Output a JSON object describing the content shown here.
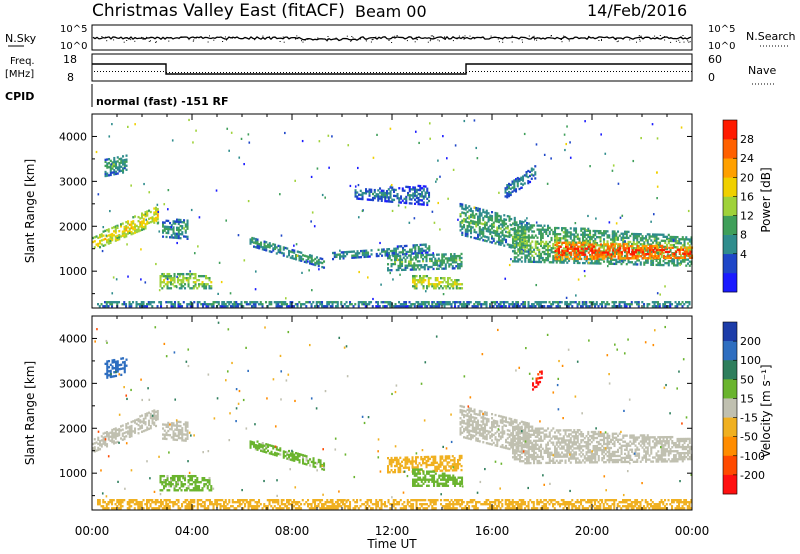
{
  "header": {
    "title": "Christmas Valley East (fitACF)",
    "beam": "Beam 00",
    "date": "14/Feb/2016"
  },
  "status_panel": {
    "nsky_label": "N.Sky",
    "nsky_ticks": [
      "10^5",
      "10^0"
    ],
    "nsearch_label": "N.Search",
    "nsearch_ticks": [
      "10^5",
      "10^0"
    ],
    "freq_label_1": "Freq.",
    "freq_label_2": "[MHz]",
    "freq_ticks": [
      "18",
      "8"
    ],
    "nave_label": "Nave",
    "nave_ticks": [
      "60",
      "0"
    ],
    "cpid_label": "CPID",
    "cpid_text": "normal (fast) -151 RF"
  },
  "colors": {
    "power_scale": [
      "#1a1aff",
      "#1e46c8",
      "#2f8c8c",
      "#3f9f5a",
      "#9fd23a",
      "#f0d000",
      "#ffa000",
      "#ff6000",
      "#ff1a00"
    ],
    "velocity_scale": [
      "#1c3ca8",
      "#2e6ec0",
      "#2e7e5c",
      "#6ab42e",
      "#c0c0b0",
      "#f0b020",
      "#ff8c00",
      "#ff4a00",
      "#ff1010"
    ]
  },
  "chart_data": [
    {
      "type": "heatmap",
      "name": "power",
      "ylabel": "Slant Range [km]",
      "yticks": [
        1000,
        2000,
        3000,
        4000
      ],
      "ylim": [
        180,
        4500
      ],
      "xlim": [
        0,
        24
      ],
      "colorbar_label": "Power [dB]",
      "colorbar_ticks": [
        "28",
        "24",
        "20",
        "16",
        "12",
        "8",
        "4"
      ],
      "colorbar_range": [
        0,
        32
      ],
      "bands": [
        {
          "t0": 0.0,
          "t1": 2.6,
          "r0_start": 1450,
          "r0_end": 2050,
          "r1_start": 1750,
          "r1_end": 2450,
          "value": 18
        },
        {
          "t0": 0.5,
          "t1": 1.4,
          "r0_start": 3100,
          "r0_end": 3200,
          "r1_start": 3500,
          "r1_end": 3600,
          "value": 10
        },
        {
          "t0": 2.7,
          "t1": 4.8,
          "r0_start": 600,
          "r0_end": 600,
          "r1_start": 950,
          "r1_end": 900,
          "value": 15
        },
        {
          "t0": 2.8,
          "t1": 3.8,
          "r0_start": 1750,
          "r0_end": 1700,
          "r1_start": 2100,
          "r1_end": 2150,
          "value": 10
        },
        {
          "t0": 6.3,
          "t1": 9.3,
          "r0_start": 1550,
          "r0_end": 1050,
          "r1_start": 1750,
          "r1_end": 1250,
          "value": 10
        },
        {
          "t0": 9.6,
          "t1": 13.5,
          "r0_start": 1250,
          "r0_end": 1400,
          "r1_start": 1400,
          "r1_end": 1600,
          "value": 9
        },
        {
          "t0": 11.8,
          "t1": 14.8,
          "r0_start": 1000,
          "r0_end": 1050,
          "r1_start": 1350,
          "r1_end": 1400,
          "value": 11
        },
        {
          "t0": 12.8,
          "t1": 14.8,
          "r0_start": 600,
          "r0_end": 600,
          "r1_start": 900,
          "r1_end": 800,
          "value": 17
        },
        {
          "t0": 10.5,
          "t1": 13.5,
          "r0_start": 2600,
          "r0_end": 2450,
          "r1_start": 2800,
          "r1_end": 2900,
          "value": 7
        },
        {
          "t0": 14.7,
          "t1": 17.5,
          "r0_start": 1800,
          "r0_end": 1400,
          "r1_start": 2500,
          "r1_end": 2100,
          "value": 11
        },
        {
          "t0": 16.5,
          "t1": 17.7,
          "r0_start": 2600,
          "r0_end": 3050,
          "r1_start": 2900,
          "r1_end": 3350,
          "value": 8
        },
        {
          "t0": 16.8,
          "t1": 24.0,
          "r0_start": 1200,
          "r0_end": 1100,
          "r1_start": 2050,
          "r1_end": 1750,
          "value": 13
        },
        {
          "t0": 18.5,
          "t1": 24.0,
          "r0_start": 1250,
          "r0_end": 1280,
          "r1_start": 1650,
          "r1_end": 1520,
          "value": 27
        },
        {
          "t0": 0.2,
          "t1": 24.0,
          "r0_start": 200,
          "r0_end": 200,
          "r1_start": 330,
          "r1_end": 330,
          "value": 9
        }
      ]
    },
    {
      "type": "heatmap",
      "name": "velocity",
      "ylabel": "Slant Range [km]",
      "yticks": [
        1000,
        2000,
        3000,
        4000
      ],
      "ylim": [
        180,
        4500
      ],
      "xlim": [
        0,
        24
      ],
      "xlabel": "Time UT",
      "xticks": [
        "00:00",
        "04:00",
        "08:00",
        "12:00",
        "16:00",
        "20:00",
        "00:00"
      ],
      "colorbar_label": "Velocity [m s⁻¹]",
      "colorbar_ticks": [
        "200",
        "100",
        "50",
        "15",
        "-15",
        "-50",
        "-100",
        "-200"
      ],
      "colorbar_range": [
        -250,
        250
      ],
      "bands": [
        {
          "t0": 0.0,
          "t1": 2.6,
          "r0_start": 1450,
          "r0_end": 2050,
          "r1_start": 1750,
          "r1_end": 2450,
          "value": 0
        },
        {
          "t0": 0.5,
          "t1": 1.4,
          "r0_start": 3100,
          "r0_end": 3200,
          "r1_start": 3500,
          "r1_end": 3600,
          "value": 150
        },
        {
          "t0": 2.7,
          "t1": 4.8,
          "r0_start": 600,
          "r0_end": 600,
          "r1_start": 950,
          "r1_end": 900,
          "value": 35
        },
        {
          "t0": 2.8,
          "t1": 3.8,
          "r0_start": 1750,
          "r0_end": 1700,
          "r1_start": 2100,
          "r1_end": 2150,
          "value": 0
        },
        {
          "t0": 6.3,
          "t1": 9.3,
          "r0_start": 1550,
          "r0_end": 1050,
          "r1_start": 1750,
          "r1_end": 1250,
          "value": 35
        },
        {
          "t0": 11.8,
          "t1": 14.8,
          "r0_start": 1000,
          "r0_end": 1050,
          "r1_start": 1350,
          "r1_end": 1400,
          "value": -40
        },
        {
          "t0": 12.8,
          "t1": 14.8,
          "r0_start": 700,
          "r0_end": 700,
          "r1_start": 1100,
          "r1_end": 900,
          "value": 40
        },
        {
          "t0": 14.7,
          "t1": 17.5,
          "r0_start": 1800,
          "r0_end": 1400,
          "r1_start": 2500,
          "r1_end": 2100,
          "value": 0
        },
        {
          "t0": 16.8,
          "t1": 24.0,
          "r0_start": 1200,
          "r0_end": 1250,
          "r1_start": 2050,
          "r1_end": 1750,
          "value": 0
        },
        {
          "t0": 17.6,
          "t1": 18.0,
          "r0_start": 2800,
          "r0_end": 3100,
          "r1_start": 3000,
          "r1_end": 3350,
          "value": -200
        },
        {
          "t0": 0.2,
          "t1": 24.0,
          "r0_start": 200,
          "r0_end": 200,
          "r1_start": 400,
          "r1_end": 400,
          "value": -40
        }
      ]
    }
  ]
}
